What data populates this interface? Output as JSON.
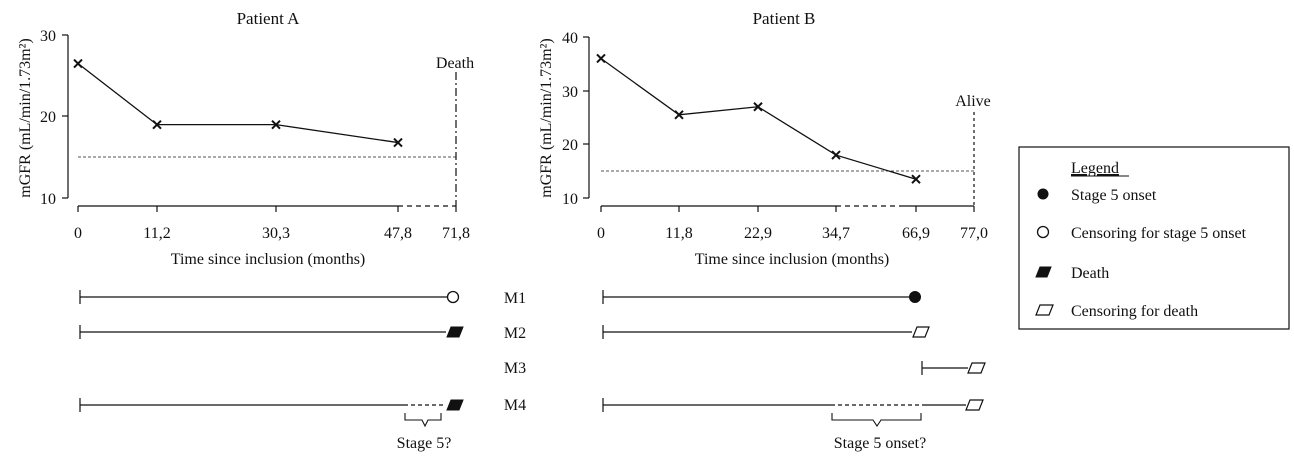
{
  "chart_data": [
    {
      "type": "line",
      "title": "Patient A",
      "ylabel": "mGFR (mL/min/1.73m²)",
      "xlabel": "Time since inclusion (months)",
      "ylim": [
        10,
        30
      ],
      "yticks": [
        "10",
        "20",
        "30"
      ],
      "x_tick_labels": [
        "0",
        "11,2",
        "30,3",
        "47,8",
        "71,8"
      ],
      "series": [
        {
          "x": [
            0,
            11.2,
            30.3,
            47.8
          ],
          "values": [
            26.5,
            19,
            19,
            16.8
          ]
        }
      ],
      "threshold_y": 15,
      "end_label": "Death",
      "end_x": 71.8
    },
    {
      "type": "line",
      "title": "Patient B",
      "ylabel": "mGFR (mL/min/1.73m²)",
      "xlabel": "Time since inclusion (months)",
      "ylim": [
        10,
        40
      ],
      "yticks": [
        "10",
        "20",
        "30",
        "40"
      ],
      "x_tick_labels": [
        "0",
        "11,8",
        "22,9",
        "34,7",
        "66,9",
        "77,0"
      ],
      "series": [
        {
          "x": [
            0,
            11.8,
            22.9,
            34.7,
            66.9
          ],
          "values": [
            36,
            25.5,
            27,
            18,
            13.5
          ]
        }
      ],
      "threshold_y": 15,
      "end_label": "Alive",
      "end_x": 77.0
    }
  ],
  "models": {
    "labels": [
      "M1",
      "M2",
      "M3",
      "M4"
    ],
    "patient_a_brace_label": "Stage 5?",
    "patient_b_brace_label": "Stage 5 onset?"
  },
  "legend": {
    "title": "Legend",
    "items": [
      {
        "symbol": "filled-circle",
        "label": "Stage 5 onset"
      },
      {
        "symbol": "open-circle",
        "label": "Censoring for stage 5 onset"
      },
      {
        "symbol": "filled-parallelogram",
        "label": "Death"
      },
      {
        "symbol": "open-parallelogram",
        "label": "Censoring for death"
      }
    ]
  }
}
